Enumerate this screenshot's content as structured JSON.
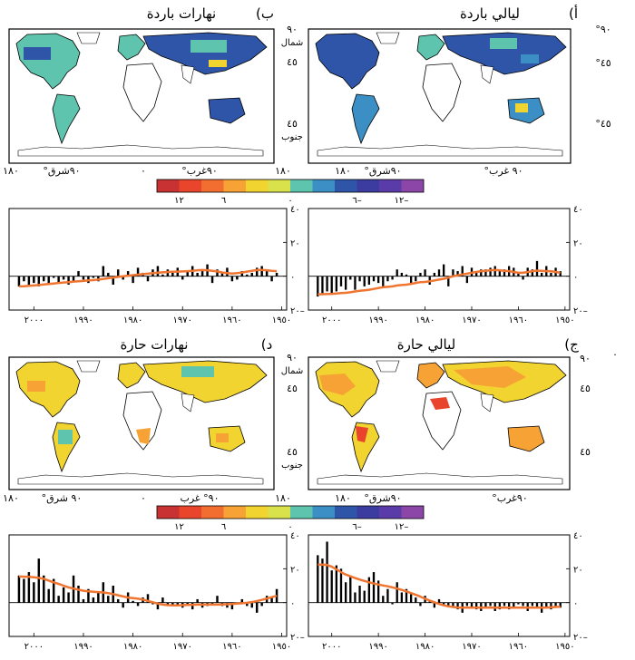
{
  "figure": {
    "panels": [
      {
        "id": "a",
        "letter": "أ)",
        "title": "ليالي باردة",
        "map_labels": {
          "lat_north": "°٩٠",
          "lat_45n": "°٤٥",
          "lat_45s": "°٤٥",
          "lon_west": "°٩٠ غرب",
          "lon_east": "°٩٠شرق",
          "lon_180": "١٨٠"
        },
        "palette": "cold"
      },
      {
        "id": "b",
        "letter": "ب)",
        "title": "نهارات باردة",
        "map_labels": {
          "lat_north": "٩٠",
          "lat_north_word": "شمال",
          "lat_45n": "٤٥",
          "lat_45s": "٤٥",
          "lat_south_word": "جنوب",
          "lon_west": "°٩٠غرب",
          "lon_center": "٠",
          "lon_east": "°٩٠شرق",
          "lon_180": "١٨٠"
        },
        "palette": "cold"
      },
      {
        "id": "c",
        "letter": "ج)",
        "title": "ليالي حارة",
        "map_labels": {
          "lat_north": "٩٠",
          "lat_45n": "٤٥",
          "lat_45s": "٤٥",
          "lon_west": "°٩٠غرب",
          "lon_east": "°٩٠شرق",
          "lon_180": "١٨٠"
        },
        "palette": "hot"
      },
      {
        "id": "d",
        "letter": "د)",
        "title": "نهارات حارة",
        "map_labels": {
          "lat_north": "٩٠",
          "lat_north_word": "شمال",
          "lat_45n": "٤٥",
          "lat_45s": "٤٥",
          "lat_south_word": "جنوب",
          "lon_west": "٩٠° غرب",
          "lon_center": "٠",
          "lon_east": "°٩٠ شرق",
          "lon_180": "١٨٠"
        },
        "palette": "hot"
      }
    ],
    "colorbar": {
      "colors": [
        "#c83232",
        "#e8452c",
        "#f26e30",
        "#f7a234",
        "#f2d431",
        "#d9e24a",
        "#5ec4ae",
        "#3c8fc4",
        "#2e55a8",
        "#3c3ca0",
        "#5a3ca8",
        "#8c46a8"
      ],
      "labels": [
        "١٢",
        "٦",
        "٠",
        "٦–",
        "١٢–"
      ],
      "dot_label": "."
    },
    "colors": {
      "cold_dominant": "#2e55a8",
      "cold_mid": "#3c8fc4",
      "cold_light": "#5ec4ae",
      "hot_dominant": "#f7a234",
      "hot_light": "#f2d431",
      "hot_red": "#e8452c",
      "trend_line": "#f07530",
      "bar": "#000000"
    }
  },
  "chart_data": [
    {
      "type": "bar",
      "panel": "a",
      "title": "ليالي باردة",
      "x": [
        1951,
        1952,
        1953,
        1954,
        1955,
        1956,
        1957,
        1958,
        1959,
        1960,
        1961,
        1962,
        1963,
        1964,
        1965,
        1966,
        1967,
        1968,
        1969,
        1970,
        1971,
        1972,
        1973,
        1974,
        1975,
        1976,
        1977,
        1978,
        1979,
        1980,
        1981,
        1982,
        1983,
        1984,
        1985,
        1986,
        1987,
        1988,
        1989,
        1990,
        1991,
        1992,
        1993,
        1994,
        1995,
        1996,
        1997,
        1998,
        1999,
        2000,
        2001,
        2002,
        2003
      ],
      "values": [
        3,
        5,
        2,
        6,
        2,
        9,
        4,
        5,
        -2,
        2,
        5,
        6,
        4,
        3,
        6,
        5,
        4,
        4,
        2,
        5,
        -4,
        6,
        3,
        4,
        -6,
        7,
        4,
        2,
        -5,
        4,
        2,
        -3,
        -4,
        1,
        2,
        4,
        -2,
        -3,
        -6,
        -4,
        -3,
        -5,
        -6,
        -3,
        -8,
        -2,
        -8,
        -6,
        -9,
        -10,
        -9,
        -10,
        -12
      ],
      "trend": [
        2,
        2.5,
        3,
        3,
        3.2,
        3.3,
        3,
        2.5,
        2,
        2,
        2.5,
        3,
        3.2,
        3.5,
        3.6,
        3.5,
        3.2,
        3,
        2.5,
        2,
        1.5,
        1,
        0.5,
        0,
        -0.8,
        -1.5,
        -2,
        -2.5,
        -3,
        -3.4,
        -3.5,
        -4,
        -4.5,
        -5,
        -5.2,
        -5.5,
        -6,
        -6.3,
        -6.5,
        -7,
        -7.5,
        -8,
        -8.3,
        -8.6,
        -9,
        -9.5,
        -9.8,
        -10,
        -10.2,
        -10.4,
        -10.5,
        -10.6,
        -10.7
      ],
      "ylim": [
        -20,
        40
      ],
      "yticks": [
        "٢٠–",
        "٠",
        "٢٠",
        "٤٠"
      ],
      "xticks": [
        "١٩٥٠",
        "١٩٦٠",
        "١٩٧٠",
        "١٩٨٠",
        "١٩٩٠",
        "٢٠٠٠"
      ]
    },
    {
      "type": "bar",
      "panel": "b",
      "title": "نهارات باردة",
      "x": [
        1951,
        1952,
        1953,
        1954,
        1955,
        1956,
        1957,
        1958,
        1959,
        1960,
        1961,
        1962,
        1963,
        1964,
        1965,
        1966,
        1967,
        1968,
        1969,
        1970,
        1971,
        1972,
        1973,
        1974,
        1975,
        1976,
        1977,
        1978,
        1979,
        1980,
        1981,
        1982,
        1983,
        1984,
        1985,
        1986,
        1987,
        1988,
        1989,
        1990,
        1991,
        1992,
        1993,
        1994,
        1995,
        1996,
        1997,
        1998,
        1999,
        2000,
        2001,
        2002,
        2003
      ],
      "values": [
        2,
        -3,
        4,
        6,
        5,
        2,
        1,
        3,
        -2,
        -3,
        5,
        2,
        4,
        -4,
        7,
        3,
        2,
        6,
        3,
        -2,
        5,
        2,
        4,
        1,
        6,
        4,
        -3,
        2,
        5,
        -4,
        3,
        -2,
        4,
        -5,
        2,
        6,
        -3,
        -1,
        -4,
        -2,
        3,
        -3,
        -5,
        -2,
        -4,
        -1,
        -5,
        -3,
        -6,
        -4,
        -5,
        -3,
        -6
      ],
      "trend": [
        3,
        3.2,
        3.5,
        3.7,
        3.6,
        3.2,
        2.7,
        2.2,
        1.8,
        1.6,
        1.8,
        2.2,
        2.8,
        3.2,
        3.5,
        3.6,
        3.5,
        3.2,
        3,
        2.8,
        2.7,
        2.6,
        2.5,
        2.3,
        2,
        1.8,
        1.5,
        1.2,
        0.9,
        0.6,
        0.3,
        0,
        -0.4,
        -0.8,
        -1.2,
        -1.6,
        -2,
        -2.3,
        -2.5,
        -2.8,
        -3,
        -3.2,
        -3.5,
        -3.7,
        -4,
        -4.3,
        -4.6,
        -4.9,
        -5.2,
        -5.5,
        -5.7,
        -5.9,
        -6
      ],
      "ylim": [
        -20,
        40
      ],
      "yticks": [
        "٢٠–",
        "٠",
        "٢٠",
        "٤٠"
      ],
      "xticks": [
        "١٩٥٠",
        "١٩٦٠",
        "١٩٧٠",
        "١٩٨٠",
        "١٩٩٠",
        "٢٠٠٠"
      ]
    },
    {
      "type": "bar",
      "panel": "c",
      "title": "ليالي حارة",
      "x": [
        1951,
        1952,
        1953,
        1954,
        1955,
        1956,
        1957,
        1958,
        1959,
        1960,
        1961,
        1962,
        1963,
        1964,
        1965,
        1966,
        1967,
        1968,
        1969,
        1970,
        1971,
        1972,
        1973,
        1974,
        1975,
        1976,
        1977,
        1978,
        1979,
        1980,
        1981,
        1982,
        1983,
        1984,
        1985,
        1986,
        1987,
        1988,
        1989,
        1990,
        1991,
        1992,
        1993,
        1994,
        1995,
        1996,
        1997,
        1998,
        1999,
        2000,
        2001,
        2002,
        2003
      ],
      "values": [
        -3,
        -2,
        -4,
        -3,
        -6,
        -3,
        -2,
        -5,
        -2,
        -1,
        -3,
        -4,
        -2,
        -4,
        -5,
        -2,
        -3,
        -5,
        -4,
        -3,
        -2,
        -6,
        -4,
        -3,
        -2,
        -1,
        2,
        -3,
        1,
        4,
        -2,
        3,
        5,
        8,
        6,
        12,
        -1,
        8,
        4,
        13,
        18,
        15,
        7,
        10,
        6,
        16,
        12,
        20,
        22,
        19,
        36,
        26,
        28
      ],
      "trend": [
        -2.5,
        -2.6,
        -2.8,
        -3,
        -3,
        -3,
        -3,
        -3,
        -3,
        -3,
        -3,
        -3,
        -3,
        -3,
        -3,
        -3,
        -3,
        -3,
        -3,
        -3,
        -3,
        -3,
        -2.9,
        -2.6,
        -2.2,
        -1.6,
        -0.8,
        0.2,
        1.2,
        2.3,
        3.5,
        4.6,
        5.6,
        6.6,
        7.5,
        8.3,
        9,
        9.6,
        10.1,
        10.7,
        11.3,
        12,
        12.8,
        13.6,
        14.5,
        15.5,
        16.6,
        18,
        19.6,
        21.2,
        22.2,
        22.5,
        22.4
      ],
      "ylim": [
        -20,
        40
      ],
      "yticks": [
        "٢٠–",
        "٠",
        "٢٠",
        "٤٠"
      ],
      "xticks": [
        "١٩٥٠",
        "١٩٦٠",
        "١٩٧٠",
        "١٩٨٠",
        "١٩٩٠",
        "٢٠٠٠"
      ]
    },
    {
      "type": "bar",
      "panel": "d",
      "title": "نهارات حارة",
      "x": [
        1951,
        1952,
        1953,
        1954,
        1955,
        1956,
        1957,
        1958,
        1959,
        1960,
        1961,
        1962,
        1963,
        1964,
        1965,
        1966,
        1967,
        1968,
        1969,
        1970,
        1971,
        1972,
        1973,
        1974,
        1975,
        1976,
        1977,
        1978,
        1979,
        1980,
        1981,
        1982,
        1983,
        1984,
        1985,
        1986,
        1987,
        1988,
        1989,
        1990,
        1991,
        1992,
        1993,
        1994,
        1995,
        1996,
        1997,
        1998,
        1999,
        2000,
        2001,
        2002,
        2003
      ],
      "values": [
        8,
        3,
        4,
        -2,
        -6,
        -3,
        -2,
        2,
        -1,
        -4,
        -3,
        -2,
        4,
        -1,
        -2,
        -3,
        2,
        -4,
        -2,
        -3,
        -1,
        -2,
        -2,
        3,
        -4,
        -1,
        5,
        3,
        -2,
        1,
        6,
        -3,
        2,
        10,
        4,
        12,
        6,
        3,
        8,
        2,
        10,
        16,
        6,
        9,
        4,
        14,
        8,
        16,
        26,
        12,
        18,
        14,
        16
      ],
      "trend": [
        4,
        3.2,
        2.4,
        1.6,
        0.9,
        0.3,
        -0.1,
        -0.4,
        -0.6,
        -0.8,
        -1,
        -1.1,
        -1.2,
        -1.2,
        -1.2,
        -1.2,
        -1.2,
        -1.3,
        -1.4,
        -1.5,
        -1.6,
        -1.6,
        -1.5,
        -1.2,
        -0.6,
        0.2,
        1,
        1.8,
        2.3,
        2.6,
        3,
        3.6,
        4.3,
        5,
        5.6,
        6,
        6.2,
        6.4,
        6.6,
        7,
        7.6,
        8.3,
        9,
        10,
        11,
        12,
        13,
        14,
        14.6,
        15,
        15.2,
        15.3,
        15.4
      ],
      "ylim": [
        -20,
        40
      ],
      "yticks": [
        "٢٠–",
        "٠",
        "٢٠",
        "٤٠"
      ],
      "xticks": [
        "١٩٥٠",
        "١٩٦٠",
        "١٩٧٠",
        "١٩٨٠",
        "١٩٩٠",
        "٢٠٠٠"
      ]
    }
  ]
}
